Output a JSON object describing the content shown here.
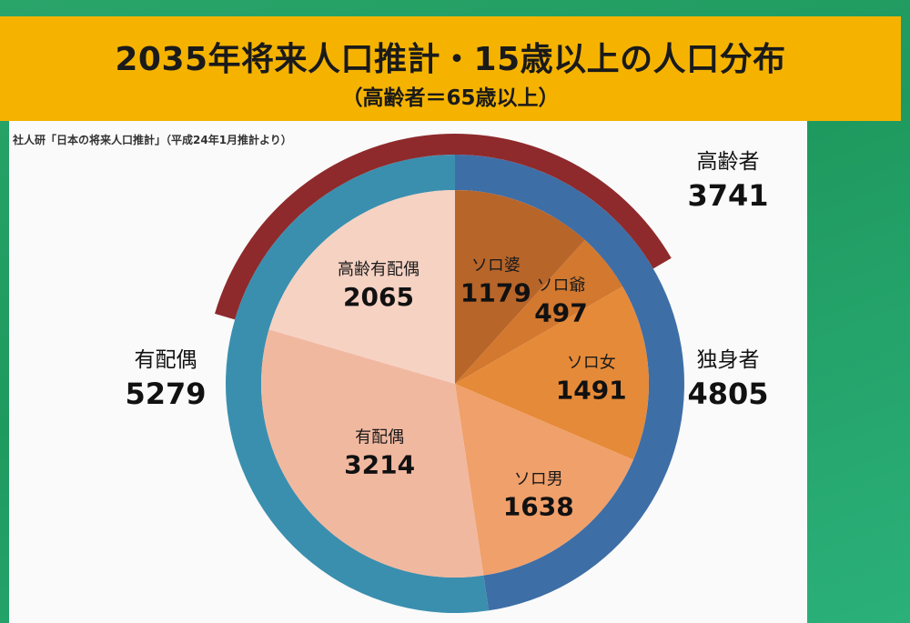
{
  "title": {
    "main": "2035年将来人口推計・15歳以上の人口分布",
    "sub": "（高齢者＝65歳以上）"
  },
  "source_note": "社人研「日本の将来人口推計」（平成24年1月推計より）",
  "colors": {
    "banner": "#f5b300",
    "background_green": "#22a064",
    "ring_married": "#3a8fae",
    "ring_single": "#3e6ea6",
    "elderly_arc": "#8e2a2c",
    "slice_elderly_married": "#f6d2c3",
    "slice_married": "#f1b8a0",
    "slice_solo_female_elderly": "#b8652a",
    "slice_solo_male_elderly": "#d2782f",
    "slice_solo_female": "#e58a38",
    "slice_solo_male": "#f0a06a"
  },
  "chart_data": {
    "type": "pie",
    "units": "万人",
    "slices": [
      {
        "key": "solo_female_elderly",
        "label": "ソロ婆",
        "value": 1179
      },
      {
        "key": "solo_male_elderly",
        "label": "ソロ爺",
        "value": 497
      },
      {
        "key": "solo_female",
        "label": "ソロ女",
        "value": 1491
      },
      {
        "key": "solo_male",
        "label": "ソロ男",
        "value": 1638
      },
      {
        "key": "married",
        "label": "有配偶",
        "value": 3214
      },
      {
        "key": "elderly_married",
        "label": "高齢有配偶",
        "value": 2065
      }
    ],
    "outer_ring": [
      {
        "key": "single",
        "label": "独身者",
        "value": 4805
      },
      {
        "key": "married_total",
        "label": "有配偶",
        "value": 5279
      }
    ],
    "elderly_arc": {
      "label": "高齢者",
      "value": 3741
    }
  }
}
